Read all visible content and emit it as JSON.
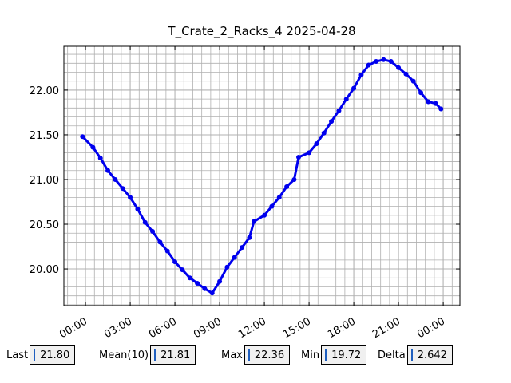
{
  "chart_data": {
    "type": "line",
    "title": "T_Crate_2_Racks_4 2025-04-28",
    "x": [
      -0.2,
      0.5,
      1,
      1.5,
      2,
      2.5,
      3,
      3.5,
      4,
      4.5,
      5,
      5.5,
      6,
      6.5,
      7,
      7.5,
      8,
      8.5,
      9,
      9.5,
      10,
      10.5,
      11,
      11.3,
      12,
      12.5,
      13,
      13.5,
      14,
      14.3,
      15,
      15.5,
      16,
      16.5,
      17,
      17.5,
      18,
      18.5,
      19,
      19.5,
      20,
      20.5,
      21,
      21.5,
      22,
      22.5,
      23,
      23.5,
      23.85
    ],
    "series": [
      {
        "color": "#0000ee",
        "values": [
          21.48,
          21.36,
          21.24,
          21.1,
          21.0,
          20.9,
          20.8,
          20.67,
          20.52,
          20.42,
          20.3,
          20.2,
          20.08,
          19.99,
          19.9,
          19.84,
          19.78,
          19.73,
          19.86,
          20.02,
          20.13,
          20.24,
          20.35,
          20.53,
          20.6,
          20.7,
          20.8,
          20.92,
          21.0,
          21.25,
          21.3,
          21.4,
          21.52,
          21.65,
          21.77,
          21.9,
          22.02,
          22.17,
          22.28,
          22.32,
          22.34,
          22.32,
          22.25,
          22.18,
          22.1,
          21.97,
          21.87,
          21.85,
          21.79
        ]
      }
    ],
    "xlim": [
      -1.45,
      25.12
    ],
    "xticks": [
      {
        "value": 0,
        "label": "00:00"
      },
      {
        "value": 3,
        "label": "03:00"
      },
      {
        "value": 6,
        "label": "06:00"
      },
      {
        "value": 9,
        "label": "09:00"
      },
      {
        "value": 12,
        "label": "12:00"
      },
      {
        "value": 15,
        "label": "15:00"
      },
      {
        "value": 18,
        "label": "18:00"
      },
      {
        "value": 21,
        "label": "21:00"
      },
      {
        "value": 24,
        "label": "00:00"
      }
    ],
    "ylim": [
      19.59,
      22.49
    ],
    "yticks": [
      {
        "value": 20,
        "label": "20.00"
      },
      {
        "value": 20.5,
        "label": "20.50"
      },
      {
        "value": 21,
        "label": "21.00"
      },
      {
        "value": 21.5,
        "label": "21.50"
      },
      {
        "value": 22,
        "label": "22.00"
      }
    ],
    "grid": true
  },
  "stats": [
    {
      "label": "Last",
      "value": "21.80"
    },
    {
      "label": "Mean(10)",
      "value": "21.81"
    },
    {
      "label": "Max",
      "value": "22.36"
    },
    {
      "label": "Min",
      "value": "19.72"
    },
    {
      "label": "Delta",
      "value": "2.642"
    }
  ]
}
